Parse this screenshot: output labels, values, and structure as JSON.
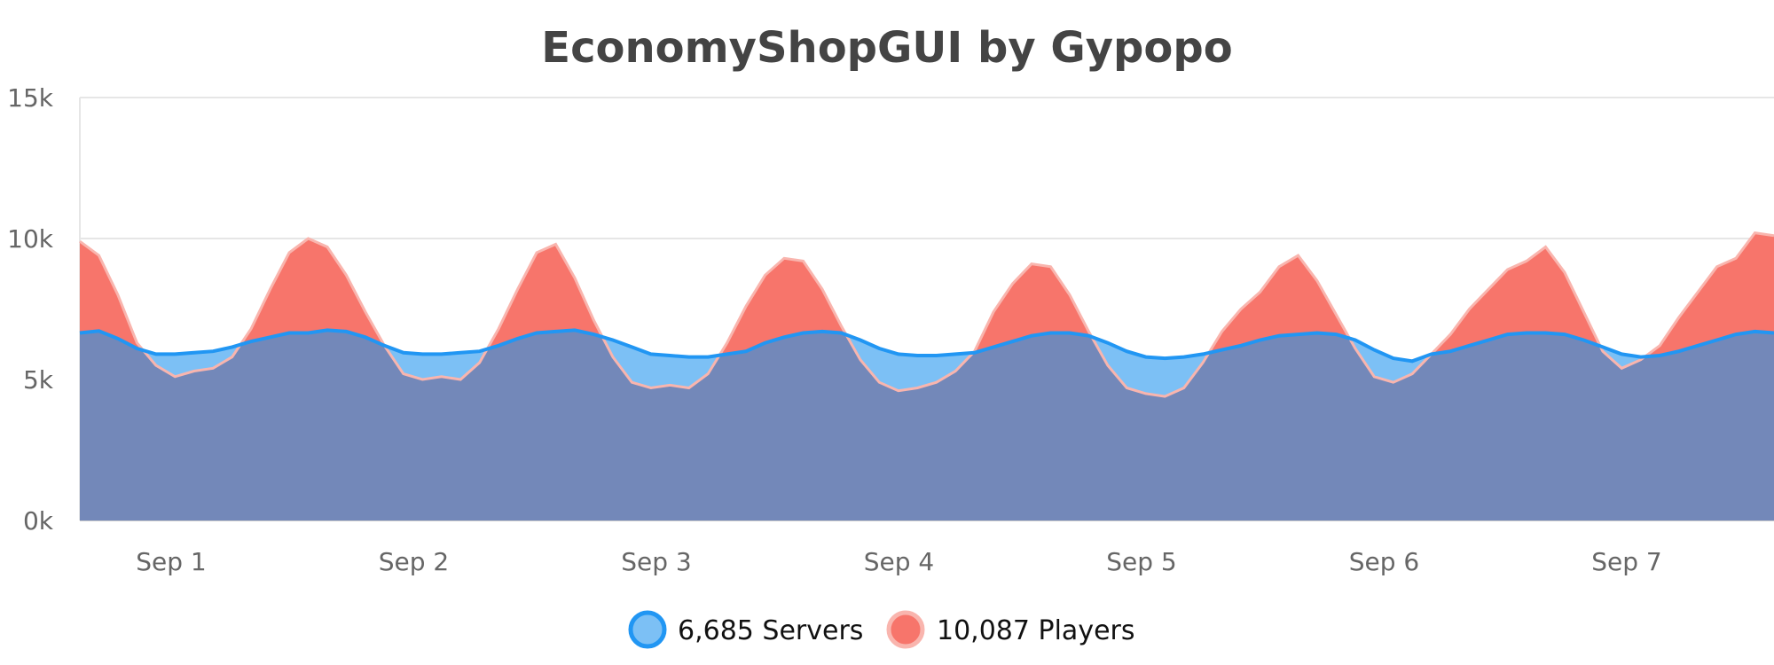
{
  "chart_data": {
    "type": "area",
    "title": "EconomyShopGUI by Gypopo",
    "xlabel": "",
    "ylabel": "",
    "ylim": [
      0,
      15000
    ],
    "yticks": [
      {
        "value": 0,
        "label": "0k"
      },
      {
        "value": 5000,
        "label": "5k"
      },
      {
        "value": 10000,
        "label": "10k"
      },
      {
        "value": 15000,
        "label": "15k"
      }
    ],
    "x_start": "Aug 31 12:00",
    "x_end": "Sep 7 18:00",
    "xticks": [
      {
        "label": "Sep 1"
      },
      {
        "label": "Sep 2"
      },
      {
        "label": "Sep 3"
      },
      {
        "label": "Sep 4"
      },
      {
        "label": "Sep 5"
      },
      {
        "label": "Sep 6"
      },
      {
        "label": "Sep 7"
      }
    ],
    "grid": true,
    "legend_position": "bottom-center",
    "series": [
      {
        "key": "players",
        "label": "10,087 Players",
        "color": "#f7756b",
        "line_color": "#f9b5ae",
        "values": [
          9900,
          9400,
          8000,
          6300,
          5500,
          5100,
          5300,
          5400,
          5800,
          6800,
          8200,
          9500,
          10000,
          9700,
          8700,
          7400,
          6200,
          5200,
          5000,
          5100,
          5000,
          5600,
          6800,
          8200,
          9500,
          9800,
          8600,
          7100,
          5800,
          4900,
          4700,
          4800,
          4700,
          5200,
          6300,
          7600,
          8700,
          9300,
          9200,
          8200,
          6900,
          5700,
          4900,
          4600,
          4700,
          4900,
          5300,
          6000,
          7400,
          8400,
          9100,
          9000,
          8000,
          6700,
          5500,
          4700,
          4500,
          4400,
          4700,
          5600,
          6700,
          7500,
          8100,
          9000,
          9400,
          8500,
          7300,
          6100,
          5100,
          4900,
          5200,
          5900,
          6600,
          7500,
          8200,
          8900,
          9200,
          9700,
          8800,
          7400,
          6000,
          5400,
          5700,
          6200,
          7200,
          8100,
          9000,
          9300,
          10200,
          10100
        ]
      },
      {
        "key": "servers",
        "label": "6,685 Servers",
        "color": "#7cc0f5",
        "line_color": "#2196f3",
        "values": [
          6650,
          6720,
          6450,
          6100,
          5900,
          5900,
          5950,
          6000,
          6150,
          6350,
          6500,
          6650,
          6650,
          6750,
          6700,
          6500,
          6200,
          5950,
          5900,
          5900,
          5950,
          6000,
          6200,
          6450,
          6650,
          6700,
          6750,
          6600,
          6400,
          6150,
          5900,
          5850,
          5800,
          5800,
          5900,
          6000,
          6300,
          6500,
          6650,
          6700,
          6650,
          6400,
          6100,
          5900,
          5850,
          5850,
          5900,
          5950,
          6150,
          6350,
          6550,
          6650,
          6650,
          6550,
          6300,
          6000,
          5800,
          5750,
          5800,
          5900,
          6050,
          6200,
          6400,
          6550,
          6600,
          6650,
          6600,
          6400,
          6050,
          5750,
          5650,
          5900,
          6000,
          6200,
          6400,
          6600,
          6650,
          6650,
          6600,
          6400,
          6150,
          5900,
          5800,
          5850,
          6000,
          6200,
          6400,
          6600,
          6700,
          6650
        ]
      }
    ],
    "overlap_color": "#7388b9"
  }
}
